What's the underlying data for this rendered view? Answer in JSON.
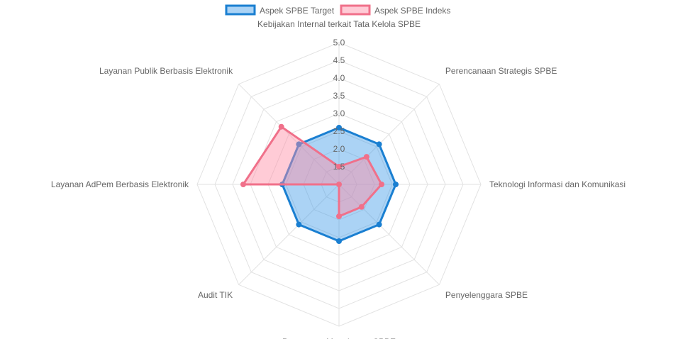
{
  "chart_data": {
    "type": "radar",
    "axes": [
      "Kebijakan Internal terkait Tata Kelola SPBE",
      "Perencanaan Strategis SPBE",
      "Teknologi Informasi dan Komunikasi",
      "Penyelenggara SPBE",
      "Penerapan Manajemen SPBE",
      "Audit TIK",
      "Layanan AdPem Berbasis Elektronik",
      "Layanan Publik Berbasis Elektronik"
    ],
    "ticks": [
      "1.5",
      "2.0",
      "2.5",
      "3.0",
      "3.5",
      "4.0",
      "4.5",
      "5.0"
    ],
    "range": [
      1.0,
      5.0
    ],
    "grid": true,
    "legend_position": "top",
    "series": [
      {
        "name": "Aspek SPBE Target",
        "values": [
          2.6,
          2.6,
          2.6,
          2.6,
          2.6,
          2.6,
          2.6,
          2.6
        ],
        "color": "#1a7fd1",
        "fill": "rgba(54,150,230,0.42)"
      },
      {
        "name": "Aspek SPBE Indeks",
        "values": [
          1.5,
          2.1,
          2.2,
          1.9,
          1.9,
          1.0,
          3.7,
          3.3
        ],
        "color": "#f0708a",
        "fill": "rgba(255,140,165,0.45)"
      }
    ]
  }
}
